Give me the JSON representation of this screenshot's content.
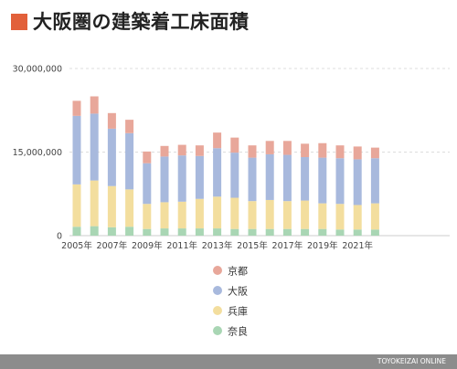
{
  "title": "大阪圏の建築着工床面積",
  "colors": {
    "title_square": "#E2603A",
    "京都": "#E8A79A",
    "大阪": "#A8B9DD",
    "兵庫": "#F3DE9E",
    "奈良": "#A9D6B4",
    "grid": "#dddddd",
    "axis_text": "#444444"
  },
  "footer": {
    "credit": "TOYOKEIZAI ONLINE"
  },
  "chart_data": {
    "type": "bar",
    "stacked": true,
    "x": [
      2005,
      2006,
      2007,
      2008,
      2009,
      2010,
      2011,
      2012,
      2013,
      2014,
      2015,
      2016,
      2017,
      2018,
      2019,
      2020,
      2021,
      2022
    ],
    "xtick_labels": [
      "2005年",
      "2007年",
      "2009年",
      "2011年",
      "2013年",
      "2015年",
      "2017年",
      "2019年",
      "2021年"
    ],
    "xticks": [
      2005,
      2007,
      2009,
      2011,
      2013,
      2015,
      2017,
      2019,
      2021
    ],
    "ylim": [
      0,
      30000000
    ],
    "yticks": [
      0,
      15000000,
      30000000
    ],
    "ytick_labels": [
      "0",
      "15,000,000",
      "30,000,000"
    ],
    "grid": true,
    "legend_position": "bottom-center",
    "series": [
      {
        "name": "奈良",
        "values": [
          1600000,
          1700000,
          1500000,
          1600000,
          1200000,
          1300000,
          1300000,
          1300000,
          1300000,
          1200000,
          1200000,
          1200000,
          1200000,
          1200000,
          1200000,
          1100000,
          1100000,
          1100000
        ]
      },
      {
        "name": "兵庫",
        "values": [
          7600000,
          8200000,
          7400000,
          6700000,
          4500000,
          4700000,
          4800000,
          5300000,
          5700000,
          5600000,
          5000000,
          5200000,
          5000000,
          5100000,
          4600000,
          4600000,
          4400000,
          4700000
        ]
      },
      {
        "name": "大阪",
        "values": [
          12300000,
          12000000,
          10300000,
          10100000,
          7300000,
          8200000,
          8300000,
          7700000,
          8700000,
          8100000,
          7800000,
          8200000,
          8300000,
          7800000,
          8200000,
          8200000,
          8200000,
          8100000
        ]
      },
      {
        "name": "京都",
        "values": [
          2700000,
          3100000,
          2800000,
          2400000,
          2100000,
          1900000,
          1900000,
          1900000,
          2800000,
          2700000,
          2200000,
          2400000,
          2500000,
          2400000,
          2600000,
          2300000,
          2300000,
          1900000
        ]
      }
    ],
    "legend_order": [
      "京都",
      "大阪",
      "兵庫",
      "奈良"
    ]
  }
}
